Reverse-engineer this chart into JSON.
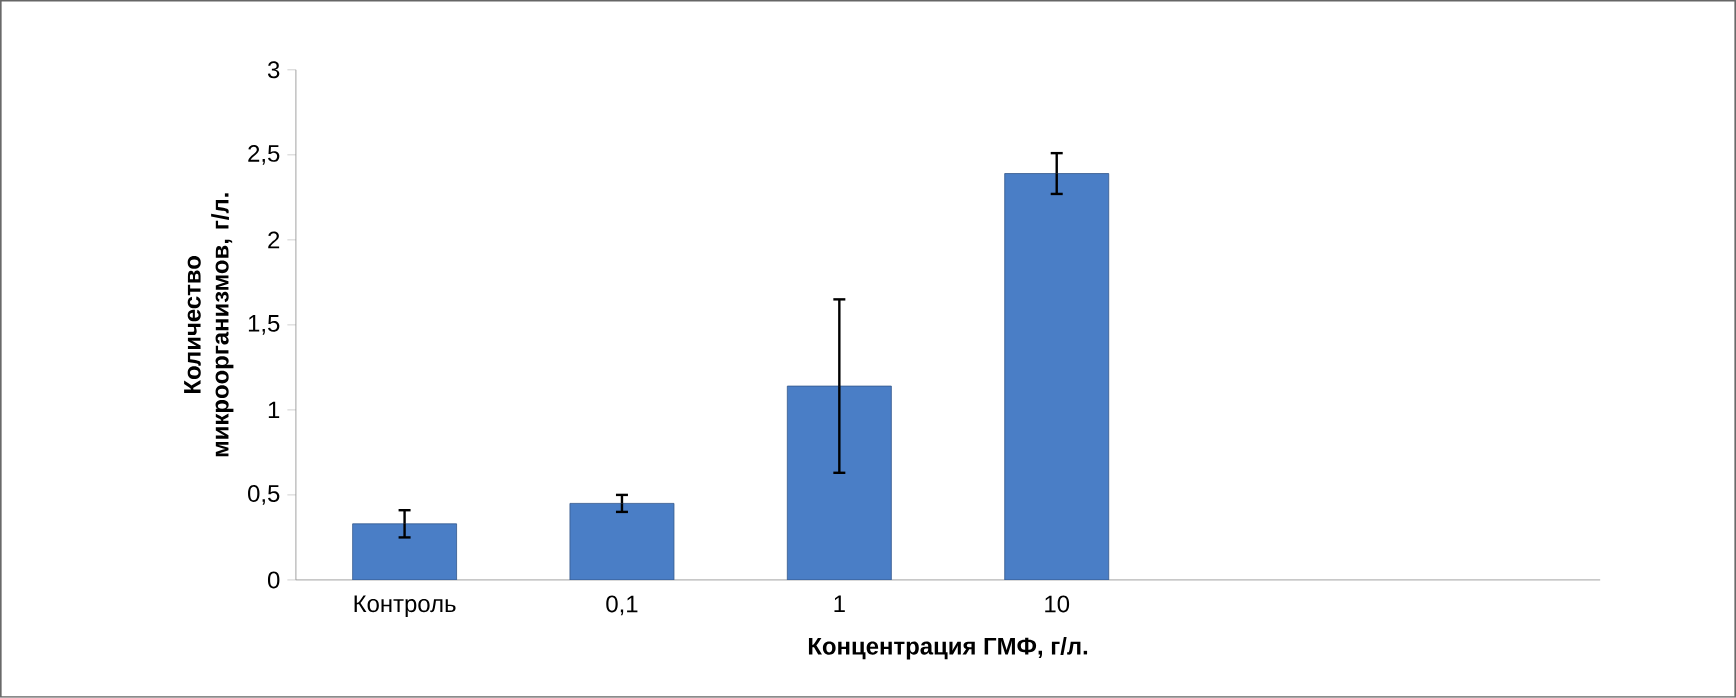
{
  "chart_data": {
    "type": "bar",
    "xlabel": "Концентрация ГМФ, г/л.",
    "ylabel": "Количество микроорганизмов, г/л.",
    "categories": [
      "Контроль",
      "0,1",
      "1",
      "10",
      null,
      null
    ],
    "values": [
      0.33,
      0.45,
      1.14,
      2.39,
      null,
      null
    ],
    "errors": [
      0.08,
      0.05,
      0.51,
      0.12,
      null,
      null
    ],
    "color": "#4a7ec6",
    "ylim": [
      0,
      3
    ],
    "yticks": [
      0,
      {
        "value": 0.5,
        "label": "0,5"
      },
      1,
      {
        "value": 1.5,
        "label": "1,5"
      },
      2,
      {
        "value": 2.5,
        "label": "2,5"
      },
      3
    ],
    "grid": false
  }
}
